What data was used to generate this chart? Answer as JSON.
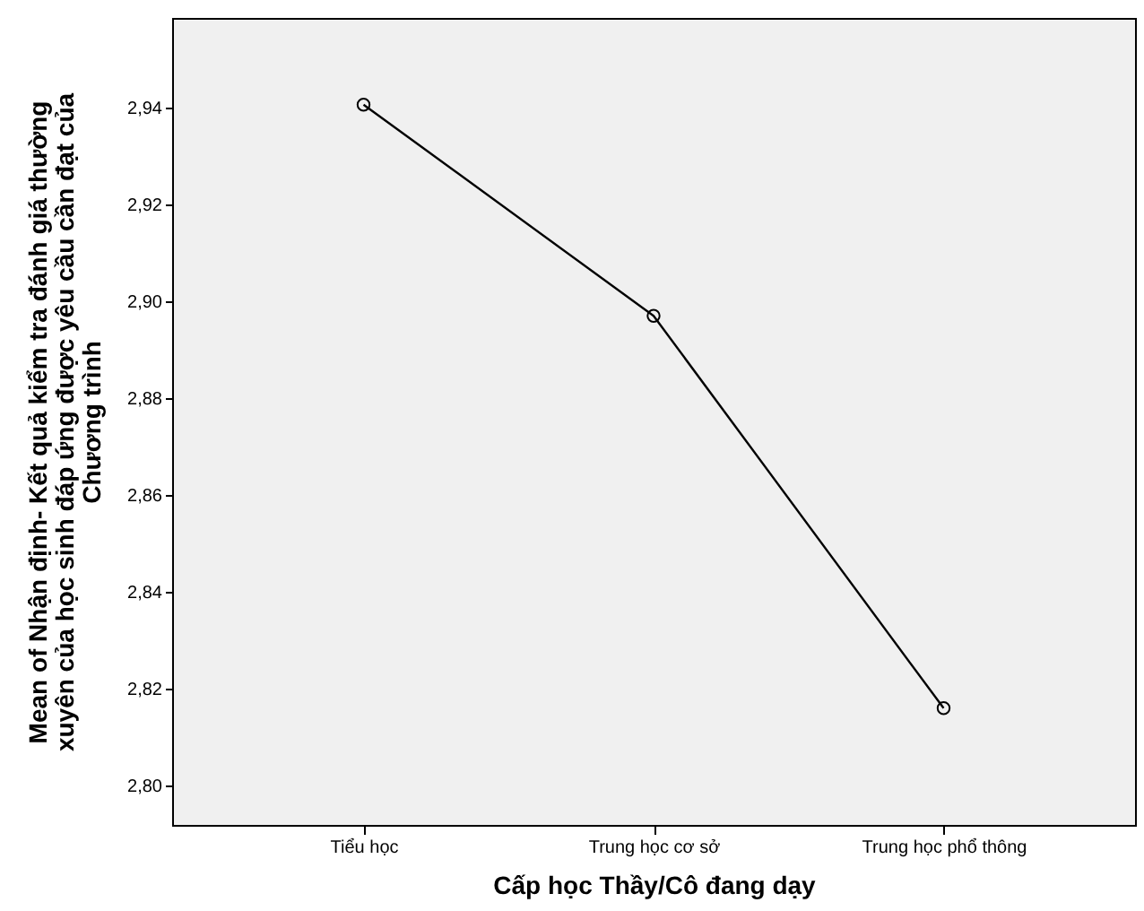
{
  "chart_data": {
    "type": "line",
    "xlabel": "Cấp học Thầy/Cô đang dạy",
    "ylabel": "Mean of Nhận định- Kết quả kiểm tra đánh giá thường xuyên của học sinh đáp ứng được yêu cầu cần đạt của Chương trình",
    "categories": [
      "Tiểu học",
      "Trung học cơ sở",
      "Trung học phổ thông"
    ],
    "series": [
      {
        "color": "#000000",
        "values": [
          2.9406,
          2.897,
          2.816
        ]
      }
    ],
    "ylim": [
      2.7919,
      2.9585
    ],
    "yticks": [
      {
        "value": 2.8,
        "label": "2,80"
      },
      {
        "value": 2.82,
        "label": "2,82"
      },
      {
        "value": 2.84,
        "label": "2,84"
      },
      {
        "value": 2.86,
        "label": "2,86"
      },
      {
        "value": 2.88,
        "label": "2,88"
      },
      {
        "value": 2.9,
        "label": "2,90"
      },
      {
        "value": 2.92,
        "label": "2,92"
      },
      {
        "value": 2.94,
        "label": "2,94"
      }
    ],
    "marker": "circle",
    "line_style": "solid"
  }
}
